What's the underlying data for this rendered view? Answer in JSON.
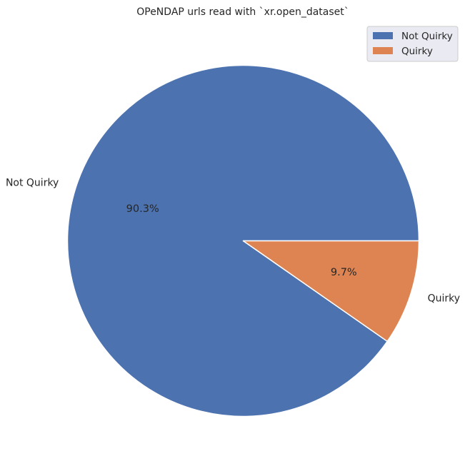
{
  "chart_data": {
    "type": "pie",
    "title": "OPeNDAP urls read with `xr.open_dataset`",
    "categories": [
      "Not Quirky",
      "Quirky"
    ],
    "values": [
      90.3,
      9.7
    ],
    "percent_labels": [
      "90.3%",
      "9.7%"
    ],
    "colors": [
      "#4c72b0",
      "#dd8452"
    ],
    "legend": {
      "placement": "top-right",
      "entries": [
        "Not Quirky",
        "Quirky"
      ]
    }
  }
}
